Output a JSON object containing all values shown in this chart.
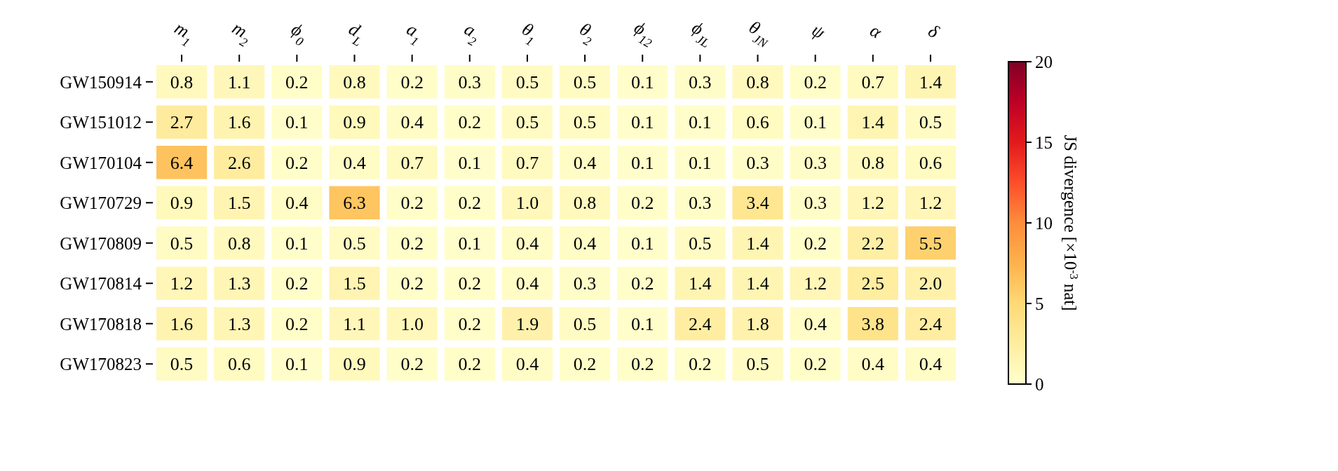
{
  "chart_data": {
    "type": "heatmap",
    "categories": [
      "m$_{1}$",
      "m$_{2}$",
      "ϕ$_{0}$",
      "d$_{L}$",
      "a$_{1}$",
      "a$_{2}$",
      "θ$_{1}$",
      "θ$_{2}$",
      "ϕ$_{12}$",
      "ϕ$_{JL}$",
      "θ$_{JN}$",
      "ψ",
      "α",
      "δ"
    ],
    "y_categories": [
      "GW150914",
      "GW151012",
      "GW170104",
      "GW170729",
      "GW170809",
      "GW170814",
      "GW170818",
      "GW170823"
    ],
    "cells": [
      [
        0.8,
        1.1,
        0.2,
        0.8,
        0.2,
        0.3,
        0.5,
        0.5,
        0.1,
        0.3,
        0.8,
        0.2,
        0.7,
        1.4
      ],
      [
        2.7,
        1.6,
        0.1,
        0.9,
        0.4,
        0.2,
        0.5,
        0.5,
        0.1,
        0.1,
        0.6,
        0.1,
        1.4,
        0.5
      ],
      [
        6.4,
        2.6,
        0.2,
        0.4,
        0.7,
        0.1,
        0.7,
        0.4,
        0.1,
        0.1,
        0.3,
        0.3,
        0.8,
        0.6
      ],
      [
        0.9,
        1.5,
        0.4,
        6.3,
        0.2,
        0.2,
        1.0,
        0.8,
        0.2,
        0.3,
        3.4,
        0.3,
        1.2,
        1.2
      ],
      [
        0.5,
        0.8,
        0.1,
        0.5,
        0.2,
        0.1,
        0.4,
        0.4,
        0.1,
        0.5,
        1.4,
        0.2,
        2.2,
        5.5
      ],
      [
        1.2,
        1.3,
        0.2,
        1.5,
        0.2,
        0.2,
        0.4,
        0.3,
        0.2,
        1.4,
        1.4,
        1.2,
        2.5,
        2.0
      ],
      [
        1.6,
        1.3,
        0.2,
        1.1,
        1.0,
        0.2,
        1.9,
        0.5,
        0.1,
        2.4,
        1.8,
        0.4,
        3.8,
        2.4
      ],
      [
        0.5,
        0.6,
        0.1,
        0.9,
        0.2,
        0.2,
        0.4,
        0.2,
        0.2,
        0.2,
        0.5,
        0.2,
        0.4,
        0.4
      ]
    ],
    "cell_labels": [
      [
        "0.8",
        "1.1",
        "0.2",
        "0.8",
        "0.2",
        "0.3",
        "0.5",
        "0.5",
        "0.1",
        "0.3",
        "0.8",
        "0.2",
        "0.7",
        "1.4"
      ],
      [
        "2.7",
        "1.6",
        "0.1",
        "0.9",
        "0.4",
        "0.2",
        "0.5",
        "0.5",
        "0.1",
        "0.1",
        "0.6",
        "0.1",
        "1.4",
        "0.5"
      ],
      [
        "6.4",
        "2.6",
        "0.2",
        "0.4",
        "0.7",
        "0.1",
        "0.7",
        "0.4",
        "0.1",
        "0.1",
        "0.3",
        "0.3",
        "0.8",
        "0.6"
      ],
      [
        "0.9",
        "1.5",
        "0.4",
        "6.3",
        "0.2",
        "0.2",
        "1.0",
        "0.8",
        "0.2",
        "0.3",
        "3.4",
        "0.3",
        "1.2",
        "1.2"
      ],
      [
        "0.5",
        "0.8",
        "0.1",
        "0.5",
        "0.2",
        "0.1",
        "0.4",
        "0.4",
        "0.1",
        "0.5",
        "1.4",
        "0.2",
        "2.2",
        "5.5"
      ],
      [
        "1.2",
        "1.3",
        "0.2",
        "1.5",
        "0.2",
        "0.2",
        "0.4",
        "0.3",
        "0.2",
        "1.4",
        "1.4",
        "1.2",
        "2.5",
        "2.0"
      ],
      [
        "1.6",
        "1.3",
        "0.2",
        "1.1",
        "1.0",
        "0.2",
        "1.9",
        "0.5",
        "0.1",
        "2.4",
        "1.8",
        "0.4",
        "3.8",
        "2.4"
      ],
      [
        "0.5",
        "0.6",
        "0.1",
        "0.9",
        "0.2",
        "0.2",
        "0.4",
        "0.2",
        "0.2",
        "0.2",
        "0.5",
        "0.2",
        "0.4",
        "0.4"
      ]
    ],
    "data_labels": true,
    "clabel": "JS divergence [×10$^{-3}$ nat]",
    "clim": [
      0,
      20
    ],
    "cticks": [
      0,
      5,
      10,
      15,
      20
    ]
  }
}
